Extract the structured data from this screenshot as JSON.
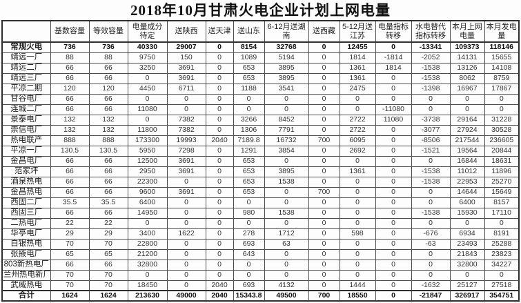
{
  "title": "2018年10月甘肃火电企业计划上网电量",
  "table": {
    "columns": [
      "",
      "基数容量",
      "等效容量",
      "电量成分待定",
      "送陕西",
      "送天津",
      "送山东",
      "6-12月送湖南",
      "送西藏",
      "5-12月送江苏",
      "电量指标转移",
      "水电替代指标转移",
      "本月上网电量",
      "本月发电量"
    ],
    "rows": [
      {
        "label": "常规火电",
        "bold": true,
        "total": false,
        "values": [
          "736",
          "736",
          "40330",
          "29007",
          "0",
          "8154",
          "32768",
          "0",
          "12455",
          "0",
          "-13341",
          "109373",
          "118146"
        ]
      },
      {
        "label": "靖远一厂",
        "bold": false,
        "total": false,
        "values": [
          "88",
          "88",
          "9750",
          "150",
          "0",
          "1089",
          "5194",
          "0",
          "1814",
          "-1814",
          "-2052",
          "14131",
          "15655"
        ]
      },
      {
        "label": "靖远二厂",
        "bold": false,
        "total": false,
        "values": [
          "66",
          "66",
          "3250",
          "3691",
          "0",
          "653",
          "3895",
          "0",
          "1361",
          "1814",
          "-1538",
          "13126",
          "14108"
        ]
      },
      {
        "label": "靖远三厂",
        "bold": false,
        "total": false,
        "values": [
          "66",
          "66",
          "0",
          "3691",
          "0",
          "653",
          "3895",
          "0",
          "1361",
          "0",
          "-1538",
          "8062",
          "8759"
        ]
      },
      {
        "label": "平凉二期",
        "bold": false,
        "total": false,
        "values": [
          "120",
          "120",
          "4450",
          "6711",
          "0",
          "1188",
          "3541",
          "0",
          "2475",
          "0",
          "-1398",
          "16967",
          "17867"
        ]
      },
      {
        "label": "甘谷电厂",
        "bold": false,
        "total": false,
        "values": [
          "66",
          "66",
          "0",
          "0",
          "0",
          "0",
          "0",
          "0",
          "0",
          "0",
          "0",
          "0",
          "0"
        ]
      },
      {
        "label": "连城二厂",
        "bold": false,
        "total": false,
        "values": [
          "66",
          "66",
          "11080",
          "0",
          "0",
          "0",
          "0",
          "0",
          "0",
          "-11080",
          "0",
          "0",
          "0"
        ]
      },
      {
        "label": "景泰电厂",
        "bold": false,
        "total": false,
        "values": [
          "132",
          "132",
          "0",
          "7382",
          "0",
          "3266",
          "8452",
          "0",
          "2722",
          "11080",
          "-3738",
          "29164",
          "31228"
        ]
      },
      {
        "label": "崇信电厂",
        "bold": false,
        "total": false,
        "values": [
          "132",
          "132",
          "11800",
          "7382",
          "0",
          "1306",
          "7791",
          "0",
          "2722",
          "0",
          "-3077",
          "27924",
          "30528"
        ]
      },
      {
        "label": "热电联产",
        "bold": false,
        "total": false,
        "values": [
          "888",
          "888",
          "173300",
          "19993",
          "2040",
          "7189.8",
          "16732",
          "700",
          "6095",
          "0",
          "-8506",
          "217544",
          "236605"
        ]
      },
      {
        "label": "平凉一厂",
        "bold": false,
        "total": false,
        "values": [
          "130.5",
          "130.5",
          "5950",
          "7298",
          "0",
          "1291",
          "3854",
          "0",
          "2692",
          "0",
          "-1521",
          "19564",
          "20844"
        ]
      },
      {
        "label": "金昌电厂",
        "bold": false,
        "total": false,
        "values": [
          "66",
          "66",
          "12500",
          "3691",
          "0",
          "653",
          "0",
          "0",
          "0",
          "0",
          "0",
          "16844",
          "18631"
        ]
      },
      {
        "label": "范家坪",
        "bold": false,
        "total": false,
        "values": [
          "66",
          "66",
          "2950",
          "3691",
          "0",
          "653",
          "3895",
          "0",
          "1361",
          "0",
          "-1538",
          "11012",
          "11896"
        ]
      },
      {
        "label": "酒泉热电",
        "bold": false,
        "total": false,
        "values": [
          "66",
          "66",
          "22300",
          "0",
          "0",
          "653",
          "1538",
          "0",
          "0",
          "0",
          "-1538",
          "22953",
          "25270"
        ]
      },
      {
        "label": "金昌热电",
        "bold": false,
        "total": false,
        "values": [
          "66",
          "66",
          "9600",
          "3691",
          "0",
          "653",
          "0",
          "700",
          "0",
          "0",
          "0",
          "14644",
          "15649"
        ]
      },
      {
        "label": "西固二厂",
        "bold": false,
        "total": false,
        "values": [
          "35.5",
          "35.5",
          "6400",
          "0",
          "0",
          "0",
          "0",
          "0",
          "0",
          "0",
          "0",
          "6400",
          "8157"
        ]
      },
      {
        "label": "西固三厂",
        "bold": false,
        "total": false,
        "values": [
          "66",
          "66",
          "14950",
          "0",
          "0",
          "980",
          "1538",
          "0",
          "0",
          "0",
          "-1538",
          "15930",
          "17110"
        ]
      },
      {
        "label": "二热电厂",
        "bold": false,
        "total": false,
        "values": [
          "22",
          "22",
          "0",
          "0",
          "0",
          "0",
          "0",
          "0",
          "0",
          "0",
          "0",
          "0",
          "0"
        ]
      },
      {
        "label": "华亭电厂",
        "bold": false,
        "total": false,
        "values": [
          "29",
          "29",
          "3400",
          "1622",
          "0",
          "278",
          "1712",
          "0",
          "598",
          "0",
          "-676",
          "6934",
          "8191"
        ]
      },
      {
        "label": "白银热电",
        "bold": false,
        "total": false,
        "values": [
          "70",
          "70",
          "22800",
          "0",
          "0",
          "693",
          "63",
          "0",
          "0",
          "0",
          "-63",
          "23493",
          "25288"
        ]
      },
      {
        "label": "张掖电厂",
        "bold": false,
        "total": false,
        "values": [
          "65",
          "65",
          "21200",
          "0",
          "0",
          "643",
          "0",
          "0",
          "0",
          "0",
          "0",
          "21843",
          "23823"
        ]
      },
      {
        "label": "803新热电厂",
        "bold": false,
        "total": false,
        "values": [
          "66",
          "66",
          "32800",
          "0",
          "0",
          "0",
          "0",
          "0",
          "0",
          "0",
          "0",
          "32800",
          "34227"
        ]
      },
      {
        "label": "兰州热电新厂",
        "bold": false,
        "total": false,
        "values": [
          "70",
          "70",
          "0",
          "0",
          "0",
          "0",
          "0",
          "0",
          "0",
          "0",
          "0",
          "0",
          "0"
        ]
      },
      {
        "label": "武威热电",
        "bold": false,
        "total": false,
        "values": [
          "70",
          "70",
          "18450",
          "0",
          "2040",
          "693",
          "4132",
          "0",
          "1444",
          "0",
          "-1632",
          "25127",
          "27518"
        ]
      },
      {
        "label": "合计",
        "bold": true,
        "total": true,
        "values": [
          "1624",
          "1624",
          "213630",
          "49000",
          "2040",
          "15343.8",
          "49500",
          "700",
          "18550",
          "0",
          "-21847",
          "326917",
          "354751"
        ]
      }
    ]
  }
}
